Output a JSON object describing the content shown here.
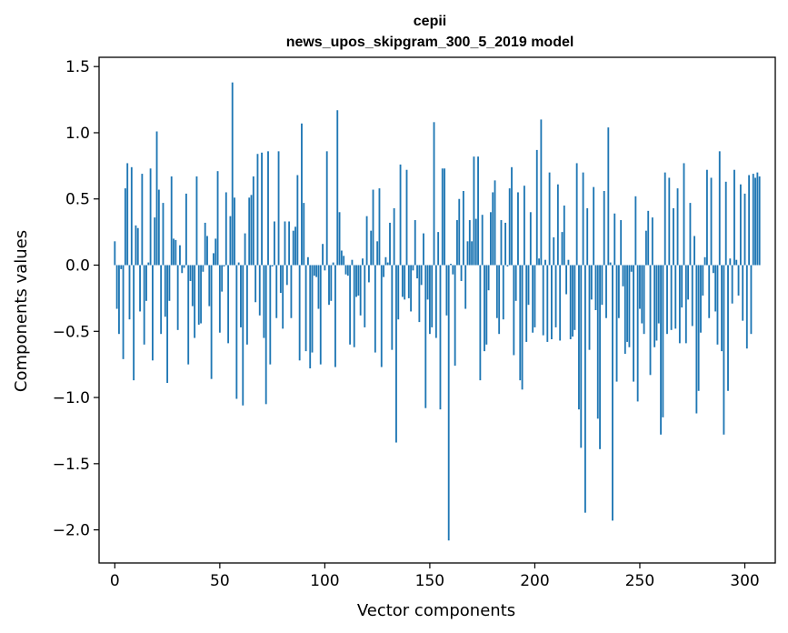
{
  "chart_data": {
    "type": "bar",
    "title": "cepii",
    "subtitle": "news_upos_skipgram_300_5_2019 model",
    "xlabel": "Vector components",
    "ylabel": "Components values",
    "xlim": [
      -7.5,
      314.5
    ],
    "ylim": [
      -2.25,
      1.57
    ],
    "x_ticks": [
      0,
      50,
      100,
      150,
      200,
      250,
      300
    ],
    "y_ticks": [
      -2.0,
      -1.5,
      -1.0,
      -0.5,
      0.0,
      0.5,
      1.0,
      1.5
    ],
    "y_tick_labels": [
      "−2.0",
      "−1.5",
      "−1.0",
      "−0.5",
      "0.0",
      "0.5",
      "1.0",
      "1.5"
    ],
    "bar_color": "#1f77b4",
    "grid": false,
    "values": [
      0.18,
      -0.33,
      -0.52,
      -0.03,
      -0.71,
      0.58,
      0.77,
      -0.41,
      0.74,
      -0.87,
      0.3,
      0.28,
      -0.35,
      0.69,
      -0.6,
      -0.27,
      0.02,
      0.73,
      -0.72,
      0.36,
      1.01,
      0.57,
      -0.52,
      0.47,
      -0.39,
      -0.89,
      -0.27,
      0.67,
      0.2,
      0.19,
      -0.49,
      0.15,
      -0.06,
      -0.02,
      0.54,
      -0.75,
      -0.12,
      -0.31,
      -0.55,
      0.67,
      -0.45,
      -0.44,
      -0.05,
      0.32,
      0.22,
      -0.31,
      -0.86,
      0.09,
      0.2,
      0.71,
      -0.51,
      -0.2,
      -0.01,
      0.55,
      -0.59,
      0.37,
      1.38,
      0.51,
      -1.01,
      0.02,
      -0.47,
      -1.06,
      0.24,
      -0.6,
      0.51,
      0.53,
      0.67,
      -0.28,
      0.84,
      -0.38,
      0.85,
      -0.55,
      -1.05,
      0.86,
      -0.75,
      -0.01,
      0.33,
      -0.4,
      0.86,
      -0.21,
      -0.48,
      0.33,
      -0.15,
      0.33,
      -0.4,
      0.26,
      0.29,
      0.68,
      -0.72,
      1.07,
      0.47,
      -0.65,
      0.06,
      -0.78,
      -0.66,
      -0.08,
      -0.09,
      -0.33,
      -0.75,
      0.16,
      -0.04,
      0.86,
      -0.3,
      -0.27,
      0.02,
      -0.77,
      1.17,
      0.4,
      0.11,
      0.07,
      -0.07,
      -0.08,
      -0.6,
      0.04,
      -0.62,
      -0.24,
      -0.23,
      -0.38,
      0.05,
      -0.47,
      0.37,
      -0.13,
      0.26,
      0.57,
      -0.66,
      0.18,
      0.58,
      -0.77,
      -0.09,
      0.06,
      0.02,
      0.32,
      -0.64,
      0.43,
      -1.34,
      -0.41,
      0.76,
      -0.24,
      -0.26,
      0.72,
      -0.25,
      -0.35,
      -0.04,
      0.34,
      -0.1,
      -0.43,
      -0.15,
      0.24,
      -1.08,
      -0.26,
      -0.52,
      -0.47,
      1.08,
      -0.55,
      0.25,
      -1.09,
      0.73,
      0.73,
      -0.38,
      -2.08,
      0.01,
      -0.07,
      -0.76,
      0.34,
      0.5,
      -0.12,
      0.56,
      -0.33,
      0.18,
      0.34,
      0.18,
      0.82,
      0.35,
      0.82,
      -0.87,
      0.38,
      -0.65,
      -0.6,
      -0.19,
      0.4,
      0.55,
      0.64,
      -0.4,
      -0.52,
      0.34,
      -0.41,
      0.32,
      -0.01,
      0.58,
      0.74,
      -0.68,
      -0.27,
      0.55,
      -0.87,
      -0.94,
      0.6,
      -0.58,
      -0.3,
      0.4,
      -0.51,
      -0.47,
      0.87,
      0.05,
      1.1,
      -0.53,
      0.04,
      -0.58,
      0.7,
      -0.56,
      0.21,
      -0.47,
      0.61,
      -0.57,
      0.25,
      0.45,
      -0.22,
      0.04,
      -0.56,
      -0.54,
      -0.49,
      0.77,
      -1.09,
      -1.38,
      0.7,
      -1.87,
      0.43,
      -0.64,
      -0.26,
      0.59,
      -0.34,
      -1.16,
      -1.39,
      -0.3,
      0.56,
      -0.4,
      1.04,
      0.02,
      -1.93,
      0.39,
      -0.88,
      -0.4,
      0.34,
      -0.16,
      -0.67,
      -0.58,
      -0.62,
      -0.05,
      -0.88,
      0.52,
      -1.03,
      -0.33,
      -0.44,
      -0.52,
      0.26,
      0.41,
      -0.83,
      0.36,
      -0.62,
      -0.57,
      -0.44,
      -1.28,
      -1.15,
      0.7,
      -0.52,
      0.66,
      -0.49,
      0.43,
      -0.48,
      0.58,
      -0.59,
      -0.32,
      0.77,
      -0.59,
      -0.26,
      0.47,
      -0.46,
      0.22,
      -1.12,
      -0.95,
      -0.51,
      -0.23,
      0.06,
      0.72,
      -0.4,
      0.66,
      -0.06,
      -0.35,
      -0.6,
      0.86,
      -0.65,
      -1.28,
      0.63,
      -0.95,
      0.05,
      -0.29,
      0.72,
      0.04,
      -0.23,
      0.61,
      -0.42,
      0.54,
      -0.63,
      0.68,
      -0.52,
      0.69,
      0.66,
      0.7,
      0.67
    ]
  }
}
